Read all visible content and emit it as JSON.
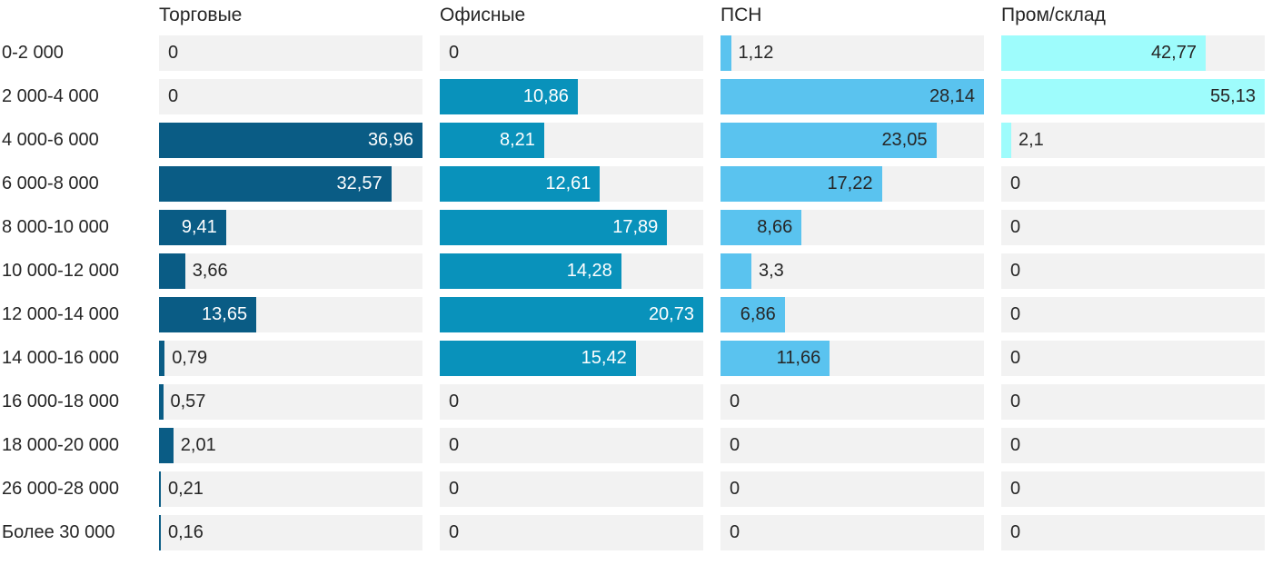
{
  "colors": {
    "background": "#ffffff",
    "track": "#f2f2f2",
    "text_dark": "#262626",
    "text_light": "#ffffff"
  },
  "chart_data": {
    "type": "bar",
    "orientation": "horizontal",
    "title": "",
    "xlabel": "",
    "ylabel": "",
    "legend_position": "column-headers",
    "grid": false,
    "scaling": "per_series_max",
    "value_format": "decimal_comma",
    "categories": [
      "0-2 000",
      "2 000-4 000",
      "4 000-6 000",
      "6 000-8 000",
      "8 000-10 000",
      "10 000-12 000",
      "12 000-14 000",
      "14 000-16 000",
      "16 000-18 000",
      "18 000-20 000",
      "26 000-28 000",
      "Более 30 000"
    ],
    "series": [
      {
        "name": "Торговые",
        "color": "#0a5c85",
        "label_color_on_bar": "#ffffff",
        "max": 36.96,
        "values": [
          0,
          0,
          36.96,
          32.57,
          9.41,
          3.66,
          13.65,
          0.79,
          0.57,
          2.01,
          0.21,
          0.16
        ]
      },
      {
        "name": "Офисные",
        "color": "#0992bb",
        "label_color_on_bar": "#ffffff",
        "max": 20.73,
        "values": [
          0,
          10.86,
          8.21,
          12.61,
          17.89,
          14.28,
          20.73,
          15.42,
          0,
          0,
          0,
          0
        ]
      },
      {
        "name": "ПСН",
        "color": "#5ac3ef",
        "label_color_on_bar": "#262626",
        "max": 28.14,
        "values": [
          1.12,
          28.14,
          23.05,
          17.22,
          8.66,
          3.3,
          6.86,
          11.66,
          0,
          0,
          0,
          0
        ]
      },
      {
        "name": "Пром/склад",
        "color": "#9efcfc",
        "label_color_on_bar": "#262626",
        "max": 55.13,
        "values": [
          42.77,
          55.13,
          2.1,
          0,
          0,
          0,
          0,
          0,
          0,
          0,
          0,
          0
        ]
      }
    ]
  }
}
